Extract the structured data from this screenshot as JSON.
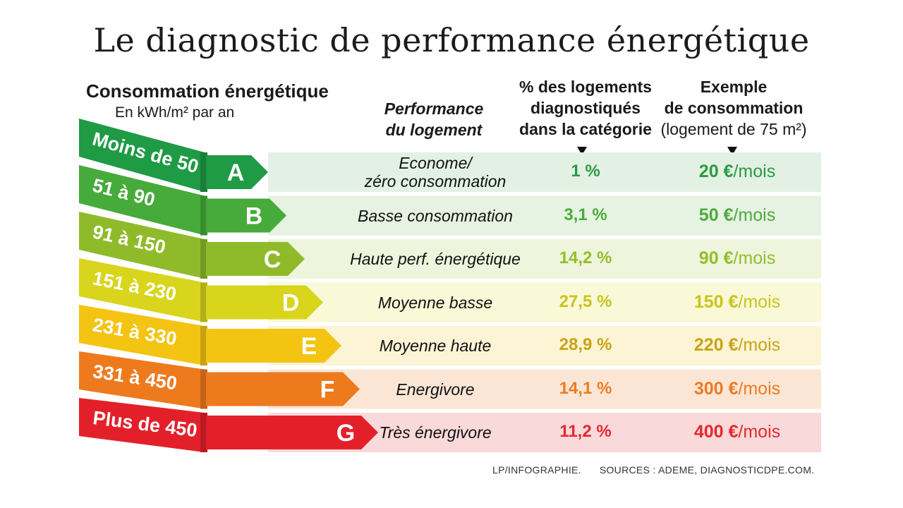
{
  "title": "Le diagnostic de performance énergétique",
  "headers": {
    "consumption": "Consommation énergétique",
    "consumption_unit": "En kWh/m² par an",
    "performance_line1": "Performance",
    "performance_line2": "du logement",
    "pct_line1": "% des logements",
    "pct_line2": "diagnostiqués",
    "pct_line3": "dans la catégorie",
    "example_line1": "Exemple",
    "example_line2": "de consommation",
    "example_line3": "(logement de 75 m²)"
  },
  "cost_unit": "/mois",
  "footer": {
    "credit": "LP/INFOGRAPHIE.",
    "sources": "SOURCES : ADEME, DIAGNOSTICDPE.COM."
  },
  "chart_data": {
    "type": "table",
    "title": "Le diagnostic de performance énergétique",
    "rows": [
      {
        "class": "A",
        "range": "Moins de 50",
        "performance": [
          "Econome/",
          "zéro consommation"
        ],
        "pct_label": "1 %",
        "pct": 1,
        "cost_label": "20 €",
        "cost": 20,
        "color": "#1f9a45",
        "text_color": "#2c9a44",
        "row_bg": "#e2f1e3"
      },
      {
        "class": "B",
        "range": "51 à 90",
        "performance": [
          "Basse consommation"
        ],
        "pct_label": "3,1 %",
        "pct": 3.1,
        "cost_label": "50 €",
        "cost": 50,
        "color": "#46ab3a",
        "text_color": "#4cab3b",
        "row_bg": "#e6f2e2"
      },
      {
        "class": "C",
        "range": "91 à 150",
        "performance": [
          "Haute  perf. énergétique"
        ],
        "pct_label": "14,2 %",
        "pct": 14.2,
        "cost_label": "90 €",
        "cost": 90,
        "color": "#8fbb2b",
        "text_color": "#94bd2c",
        "row_bg": "#eef5dc"
      },
      {
        "class": "D",
        "range": "151 à 230",
        "performance": [
          "Moyenne basse"
        ],
        "pct_label": "27,5 %",
        "pct": 27.5,
        "cost_label": "150 €",
        "cost": 150,
        "color": "#d8d51c",
        "text_color": "#c9c41a",
        "row_bg": "#f9f8d7"
      },
      {
        "class": "E",
        "range": "231 à 330",
        "performance": [
          "Moyenne haute"
        ],
        "pct_label": "28,9 %",
        "pct": 28.9,
        "cost_label": "220 €",
        "cost": 220,
        "color": "#f3c412",
        "text_color": "#c9a414",
        "row_bg": "#fcf4d5"
      },
      {
        "class": "F",
        "range": "331 à 450",
        "performance": [
          "Energivore"
        ],
        "pct_label": "14,1 %",
        "pct": 14.1,
        "cost_label": "300 €",
        "cost": 300,
        "color": "#ee7a1e",
        "text_color": "#ed7b22",
        "row_bg": "#fbe6d6"
      },
      {
        "class": "G",
        "range": "Plus de 450",
        "performance": [
          "Très énergivore"
        ],
        "pct_label": "11,2 %",
        "pct": 11.2,
        "cost_label": "400 €",
        "cost": 400,
        "color": "#e3202a",
        "text_color": "#e02a2f",
        "row_bg": "#fad9da"
      }
    ]
  }
}
